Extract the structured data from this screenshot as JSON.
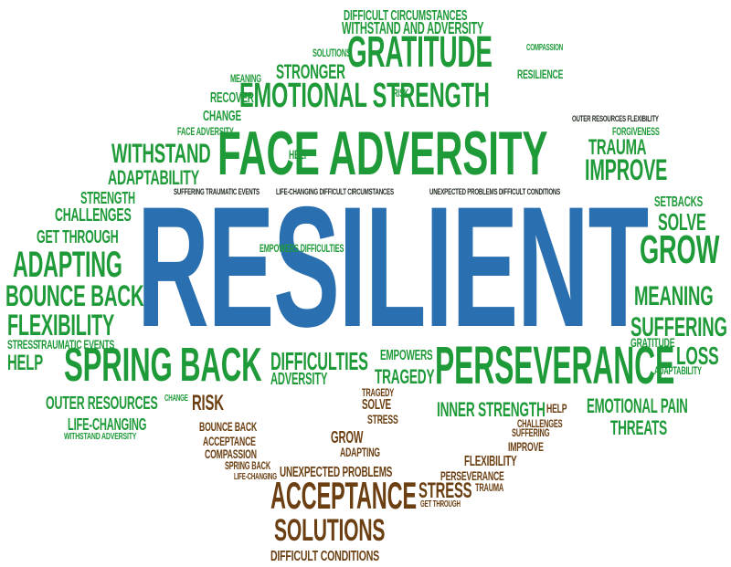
{
  "colors": {
    "green": "#1e9a38",
    "brown": "#6b3f12",
    "blue": "#2a6fb0",
    "dark": "#1f2a1f",
    "background": "#ffffff"
  },
  "words": {
    "resilient": "RESILIENT",
    "face_adversity": "FACE ADVERSITY",
    "perseverance": "PERSEVERANCE",
    "spring_back": "SPRING BACK",
    "emotional_strength": "EMOTIONAL STRENGTH",
    "gratitude": "GRATITUDE",
    "acceptance": "ACCEPTANCE",
    "solutions": "SOLUTIONS",
    "difficult_conditions": "DIFFICULT CONDITIONS",
    "grow": "GROW",
    "improve": "IMPROVE",
    "adapting": "ADAPTING",
    "flexibility": "FLEXIBILITY",
    "bounce_back": "BOUNCE BACK",
    "withstand": "WITHSTAND",
    "adaptability": "ADAPTABILITY",
    "challenges": "CHALLENGES",
    "get_through": "GET THROUGH",
    "tragedy": "TRAGEDY",
    "strength": "STRENGTH",
    "help": "HELP",
    "stress": "STRESS",
    "traumatic_events": "TRAUMATIC EVENTS",
    "outer_resources": "OUTER RESOURCES",
    "life_changing": "LIFE-CHANGING",
    "withstand_adversity": "WITHSTAND ADVERSITY",
    "inner_strength": "INNER STRENGTH",
    "emotional_pain": "EMOTIONAL PAIN",
    "threats": "THREATS",
    "suffering": "SUFFERING",
    "meaning": "MEANING",
    "solve": "SOLVE",
    "loss": "LOSS",
    "trauma": "TRAUMA",
    "setbacks": "SETBACKS",
    "difficulties": "DIFFICULTIES",
    "empowers": "EMPOWERS",
    "stronger": "STRONGER",
    "recover": "RECOVER",
    "change": "CHANGE",
    "risk": "RISK",
    "compassion": "COMPASSION",
    "unexpected_problems": "UNEXPECTED PROBLEMS",
    "forgiveness": "FORGIVENESS",
    "difficult_circumstances": "DIFFICULT CIRCUMSTANCES",
    "withstand_and_adversity": "WITHSTAND AND ADVERSITY",
    "empowers_difficulties": "EMPOWERS DIFFICULTIES",
    "adversity": "ADVERSITY",
    "solutions_small": "SOLUTIONS",
    "resilience": "RESILIENCE",
    "suffering_traumatic_events": "SUFFERING TRAUMATIC EVENTS",
    "life_changing_difficult_circumstances": "LIFE-CHANGING DIFFICULT CIRCUMSTANCES",
    "unexpected_problems_difficult_conditions": "UNEXPECTED PROBLEMS DIFFICULT CONDITIONS",
    "outer_resources_flexibility": "OUTER RESOURCES FLEXIBILITY",
    "face_adversity_small": "FACE ADVERSITY",
    "gratitude_small": "GRATITUDE",
    "adaptability_small": "ADAPTABILITY",
    "meaning_small": "MEANING",
    "change_small": "CHANGE",
    "help_small": "HELP",
    "risk_small": "RISK"
  }
}
